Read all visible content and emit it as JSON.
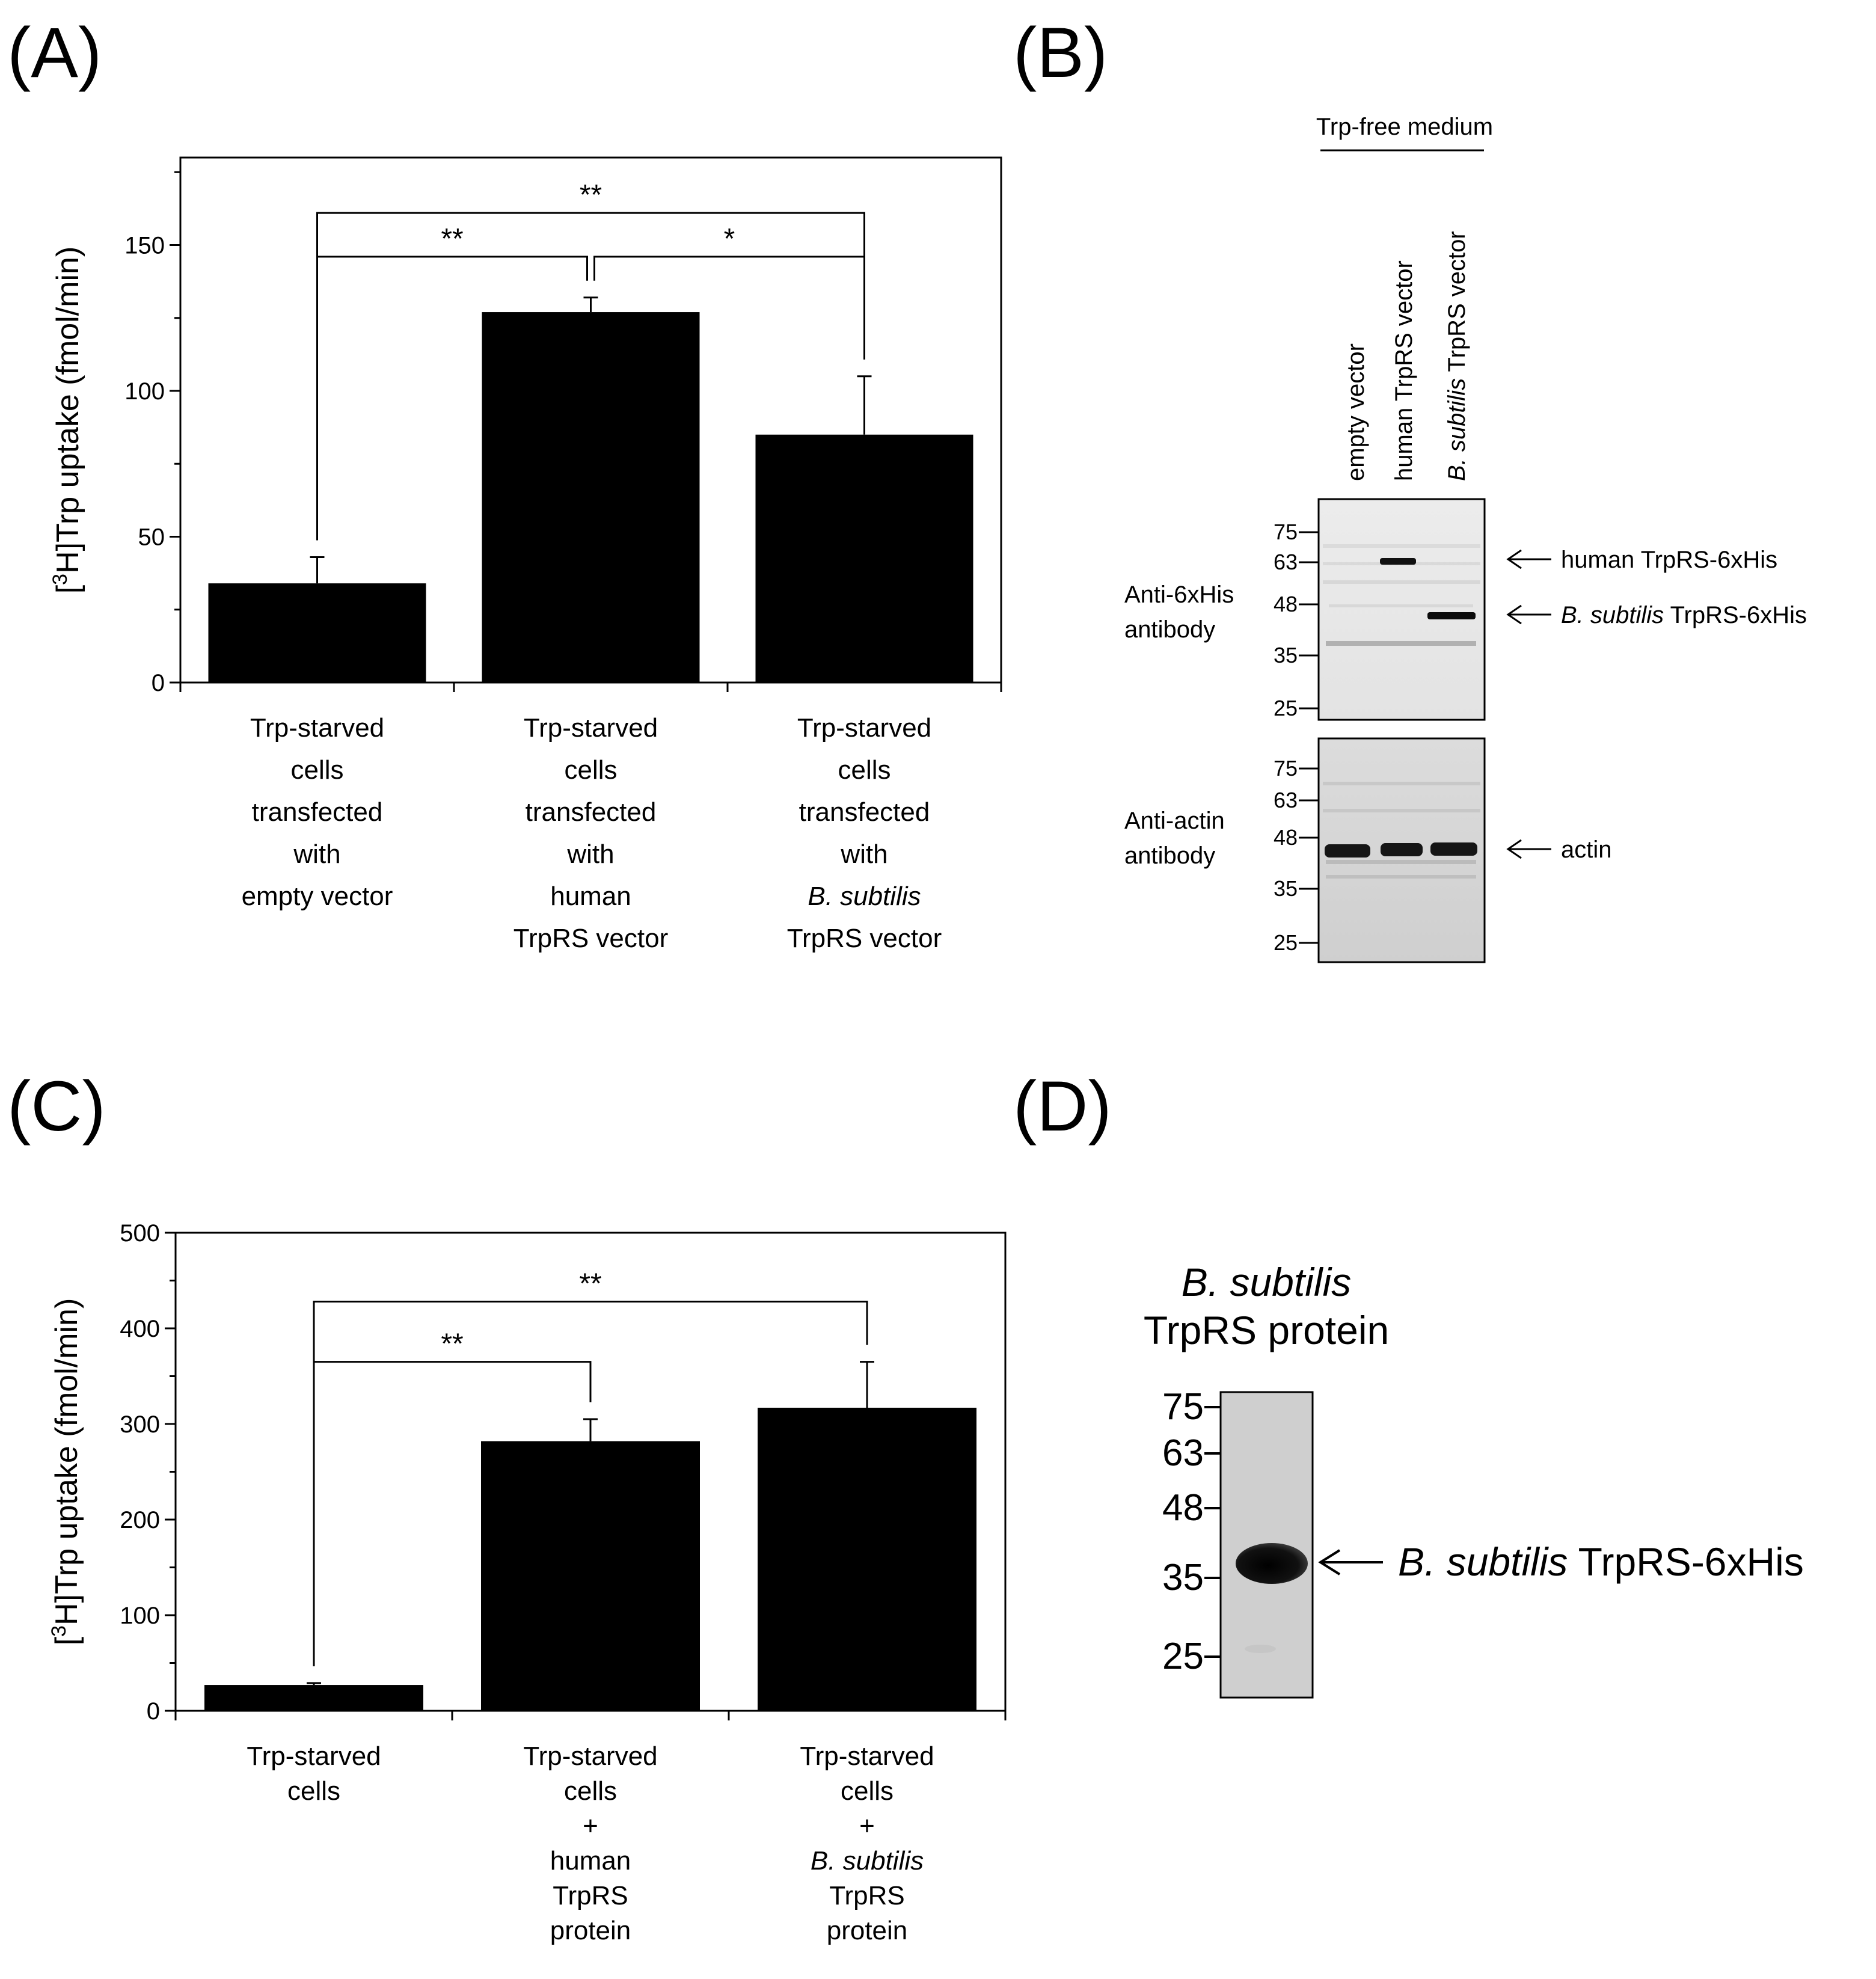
{
  "panels": {
    "A": {
      "label": "(A)"
    },
    "B": {
      "label": "(B)"
    },
    "C": {
      "label": "(C)"
    },
    "D": {
      "label": "(D)"
    }
  },
  "chart_data": [
    {
      "panel": "A",
      "type": "bar",
      "categories": [
        [
          "Trp-starved",
          "cells",
          "transfected",
          "with",
          "empty vector"
        ],
        [
          "Trp-starved",
          "cells",
          "transfected",
          "with",
          "human",
          "TrpRS vector"
        ],
        [
          "Trp-starved",
          "cells",
          "transfected",
          "with",
          "B. subtilis",
          "TrpRS vector"
        ]
      ],
      "values": [
        34,
        127,
        85
      ],
      "errors": [
        9,
        5,
        20
      ],
      "ylabel_prefix": "[",
      "ylabel_sup": "3",
      "ylabel_rest": "H]Trp uptake (fmol/min)",
      "ylim": [
        0,
        180
      ],
      "yticks": [
        0,
        50,
        100,
        150
      ],
      "brackets": [
        {
          "from": 0,
          "to": 2,
          "level": 161,
          "label": "**"
        },
        {
          "from": 0,
          "to": 1,
          "level": 146,
          "label": "**"
        },
        {
          "from": 1,
          "to": 2,
          "level": 146,
          "label": "*"
        }
      ]
    },
    {
      "panel": "C",
      "type": "bar",
      "categories": [
        [
          "Trp-starved",
          "cells"
        ],
        [
          "Trp-starved",
          "cells",
          "+",
          "human",
          "TrpRS",
          "protein"
        ],
        [
          "Trp-starved",
          "cells",
          "+",
          "B. subtilis",
          "TrpRS",
          "protein"
        ]
      ],
      "values": [
        27,
        282,
        317
      ],
      "errors": [
        2,
        23,
        48
      ],
      "ylabel_prefix": "[",
      "ylabel_sup": "3",
      "ylabel_rest": "H]Trp uptake (fmol/min)",
      "ylim": [
        0,
        500
      ],
      "yticks": [
        0,
        100,
        200,
        300,
        400,
        500
      ],
      "brackets": [
        {
          "from": 0,
          "to": 2,
          "level": 428,
          "label": "**"
        },
        {
          "from": 0,
          "to": 1,
          "level": 365,
          "label": "**"
        }
      ]
    }
  ],
  "blotB": {
    "medium_label": "Trp-free medium",
    "lanes": [
      "empty vector",
      "human TrpRS vector",
      "B. subtilis  TrpRS vector"
    ],
    "upper": {
      "antibody": [
        "Anti-6xHis",
        "antibody"
      ],
      "markers": [
        "75",
        "63",
        "48",
        "35",
        "25"
      ]
    },
    "lower": {
      "antibody": [
        "Anti-actin",
        "antibody"
      ],
      "markers": [
        "75",
        "63",
        "48",
        "35",
        "25"
      ]
    },
    "arrows": {
      "human": "human TrpRS-6xHis",
      "bsub_italic": "B. subtilis",
      "bsub_rest": "TrpRS-6xHis",
      "actin": "actin"
    }
  },
  "gelD": {
    "title_italic": "B. subtilis",
    "title_rest": "TrpRS protein",
    "markers": [
      "75",
      "63",
      "48",
      "35",
      "25"
    ],
    "band_italic": "B. subtilis",
    "band_rest": "TrpRS-6xHis"
  }
}
